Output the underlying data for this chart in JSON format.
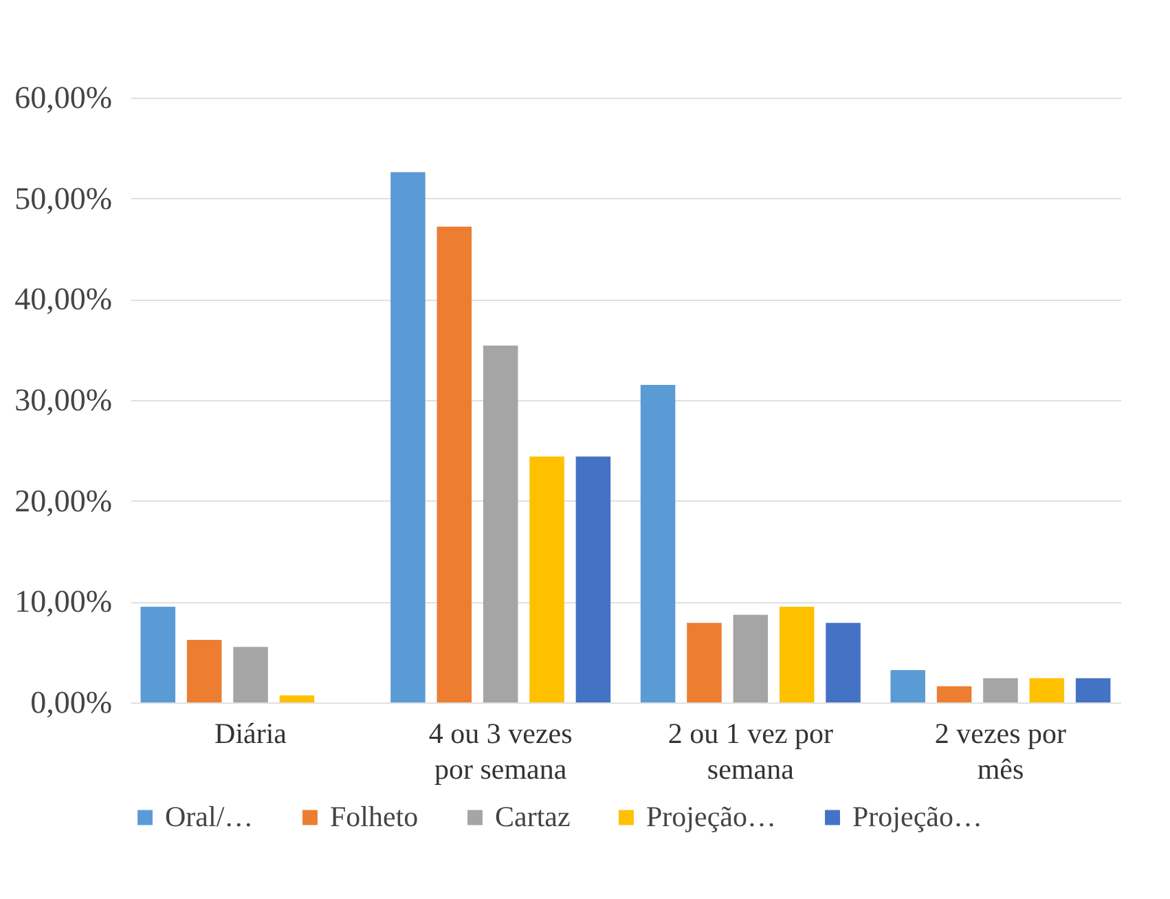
{
  "chart_data": {
    "type": "bar",
    "categories": [
      "Diária",
      "4 ou 3 vezes por semana",
      "2 ou 1 vez por semana",
      "2 vezes por mês"
    ],
    "series": [
      {
        "name": "Oral/…",
        "color": "#5b9bd5",
        "values": [
          9.5,
          52.6,
          31.5,
          3.2
        ]
      },
      {
        "name": "Folheto",
        "color": "#ed7d31",
        "values": [
          6.2,
          47.2,
          7.9,
          1.6
        ]
      },
      {
        "name": "Cartaz",
        "color": "#a5a5a5",
        "values": [
          5.5,
          35.4,
          8.7,
          2.4
        ]
      },
      {
        "name": "Projeção…",
        "color": "#ffc000",
        "values": [
          0.7,
          24.4,
          9.5,
          2.4
        ]
      },
      {
        "name": "Projeção…",
        "color": "#4472c4",
        "values": [
          0,
          24.4,
          7.9,
          2.4
        ]
      }
    ],
    "ylim": [
      0,
      60
    ],
    "yticks": [
      {
        "value": 0,
        "label": "0,00%"
      },
      {
        "value": 10,
        "label": "10,00%"
      },
      {
        "value": 20,
        "label": "20,00%"
      },
      {
        "value": 30,
        "label": "30,00%"
      },
      {
        "value": 40,
        "label": "40,00%"
      },
      {
        "value": 50,
        "label": "50,00%"
      },
      {
        "value": 60,
        "label": "60,00%"
      }
    ],
    "grid": "y",
    "legend": "bottom"
  }
}
